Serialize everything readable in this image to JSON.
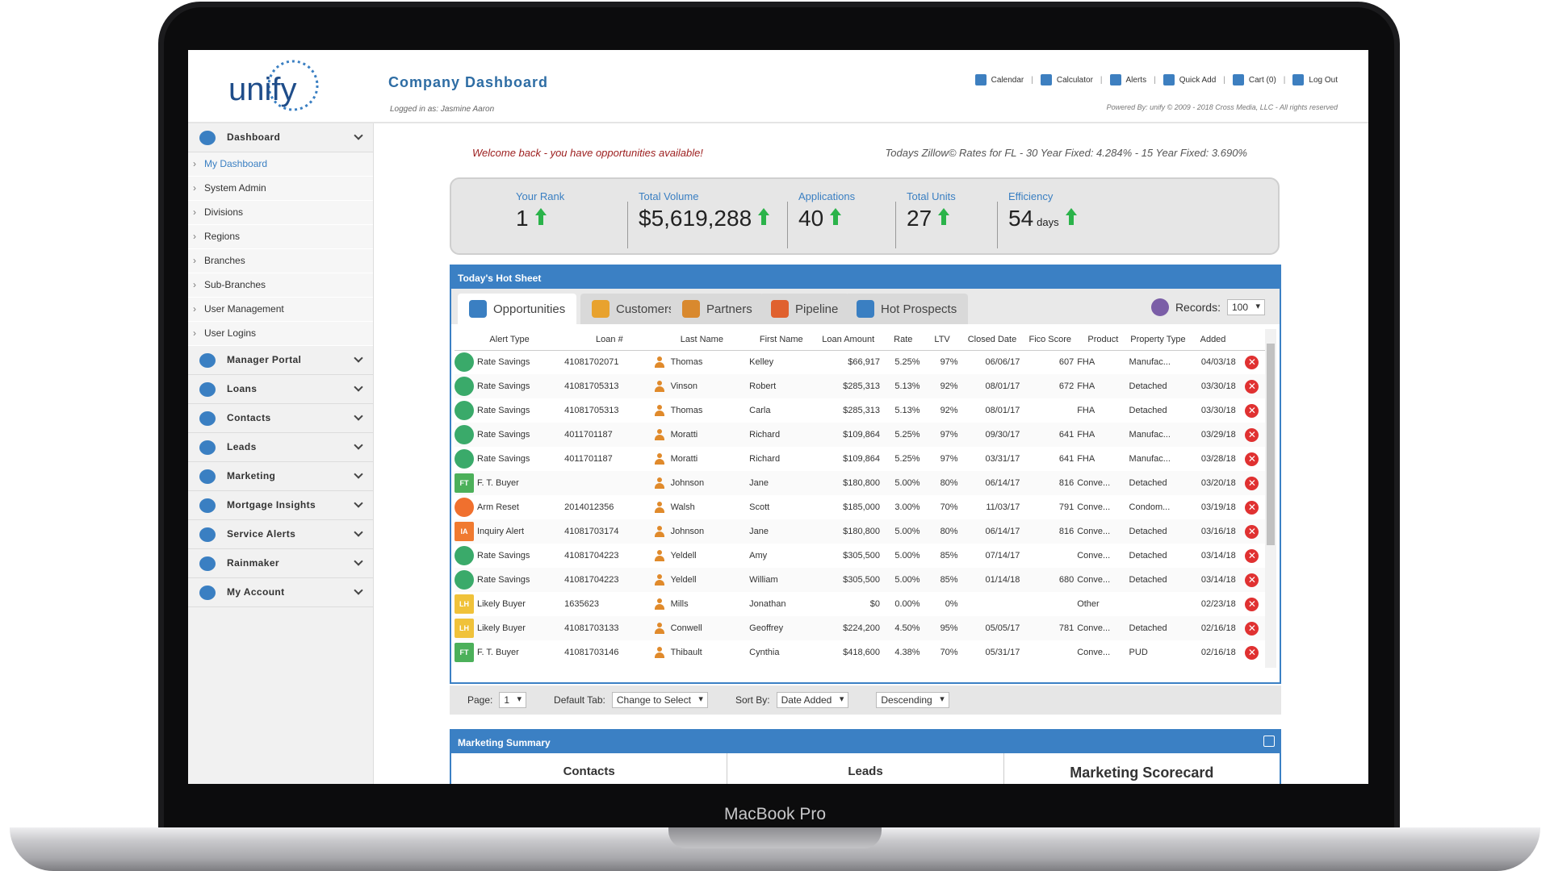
{
  "device": {
    "brand": "MacBook Pro"
  },
  "header": {
    "logo": "unify",
    "title": "Company Dashboard",
    "logged_in": "Logged in as: Jasmine Aaron",
    "nav": [
      {
        "label": "Calendar",
        "icon": "calendar-icon"
      },
      {
        "label": "Calculator",
        "icon": "calculator-icon"
      },
      {
        "label": "Alerts",
        "icon": "alert-icon"
      },
      {
        "label": "Quick Add",
        "icon": "plus-icon"
      },
      {
        "label": "Cart (0)",
        "icon": "cart-icon"
      },
      {
        "label": "Log Out",
        "icon": "user-icon"
      }
    ],
    "powered": "Powered By: unify  © 2009 - 2018 Cross Media, LLC - All rights reserved"
  },
  "sidebar": {
    "dashboard": "Dashboard",
    "sub": [
      "My Dashboard",
      "System Admin",
      "Divisions",
      "Regions",
      "Branches",
      "Sub-Branches",
      "User Management",
      "User Logins"
    ],
    "sections": [
      "Manager Portal",
      "Loans",
      "Contacts",
      "Leads",
      "Marketing",
      "Mortgage Insights",
      "Service Alerts",
      "Rainmaker",
      "My Account"
    ]
  },
  "main": {
    "welcome": "Welcome back - you have opportunities available!",
    "rates": "Todays Zillow© Rates for FL - 30 Year Fixed: 4.284% - 15 Year Fixed: 3.690%",
    "stats": [
      {
        "label": "Your Rank",
        "value": "1",
        "unit": ""
      },
      {
        "label": "Total Volume",
        "value": "$5,619,288",
        "unit": ""
      },
      {
        "label": "Applications",
        "value": "40",
        "unit": ""
      },
      {
        "label": "Total Units",
        "value": "27",
        "unit": ""
      },
      {
        "label": "Efficiency",
        "value": "54",
        "unit": "days"
      }
    ]
  },
  "hotsheet": {
    "title": "Today's Hot Sheet",
    "tabs": [
      "Opportunities",
      "Customers",
      "Partners",
      "Pipeline",
      "Hot Prospects"
    ],
    "records_label": "Records:",
    "records_value": "100",
    "columns": [
      "Alert Type",
      "Loan #",
      "Last Name",
      "First Name",
      "Loan Amount",
      "Rate",
      "LTV",
      "Closed Date",
      "Fico Score",
      "Product",
      "Property Type",
      "Added"
    ],
    "rows": [
      [
        "Rate Savings",
        "41081702071",
        "Thomas",
        "Kelley",
        "$66,917",
        "5.25%",
        "97%",
        "06/06/17",
        "607",
        "FHA",
        "Manufac...",
        "04/03/18"
      ],
      [
        "Rate Savings",
        "41081705313",
        "Vinson",
        "Robert",
        "$285,313",
        "5.13%",
        "92%",
        "08/01/17",
        "672",
        "FHA",
        "Detached",
        "03/30/18"
      ],
      [
        "Rate Savings",
        "41081705313",
        "Thomas",
        "Carla",
        "$285,313",
        "5.13%",
        "92%",
        "08/01/17",
        "",
        "FHA",
        "Detached",
        "03/30/18"
      ],
      [
        "Rate Savings",
        "4011701187",
        "Moratti",
        "Richard",
        "$109,864",
        "5.25%",
        "97%",
        "09/30/17",
        "641",
        "FHA",
        "Manufac...",
        "03/29/18"
      ],
      [
        "Rate Savings",
        "4011701187",
        "Moratti",
        "Richard",
        "$109,864",
        "5.25%",
        "97%",
        "03/31/17",
        "641",
        "FHA",
        "Manufac...",
        "03/28/18"
      ],
      [
        "F. T. Buyer",
        "",
        "Johnson",
        "Jane",
        "$180,800",
        "5.00%",
        "80%",
        "06/14/17",
        "816",
        "Conve...",
        "Detached",
        "03/20/18"
      ],
      [
        "Arm Reset",
        "2014012356",
        "Walsh",
        "Scott",
        "$185,000",
        "3.00%",
        "70%",
        "11/03/17",
        "791",
        "Conve...",
        "Condom...",
        "03/19/18"
      ],
      [
        "Inquiry Alert",
        "41081703174",
        "Johnson",
        "Jane",
        "$180,800",
        "5.00%",
        "80%",
        "06/14/17",
        "816",
        "Conve...",
        "Detached",
        "03/16/18"
      ],
      [
        "Rate Savings",
        "41081704223",
        "Yeldell",
        "Amy",
        "$305,500",
        "5.00%",
        "85%",
        "07/14/17",
        "",
        "Conve...",
        "Detached",
        "03/14/18"
      ],
      [
        "Rate Savings",
        "41081704223",
        "Yeldell",
        "William",
        "$305,500",
        "5.00%",
        "85%",
        "01/14/18",
        "680",
        "Conve...",
        "Detached",
        "03/14/18"
      ],
      [
        "Likely Buyer",
        "1635623",
        "Mills",
        "Jonathan",
        "$0",
        "0.00%",
        "0%",
        "",
        "",
        "Other",
        "",
        "02/23/18"
      ],
      [
        "Likely Buyer",
        "41081703133",
        "Conwell",
        "Geoffrey",
        "$224,200",
        "4.50%",
        "95%",
        "05/05/17",
        "781",
        "Conve...",
        "Detached",
        "02/16/18"
      ],
      [
        "F. T. Buyer",
        "41081703146",
        "Thibault",
        "Cynthia",
        "$418,600",
        "4.38%",
        "70%",
        "05/31/17",
        "",
        "Conve...",
        "PUD",
        "02/16/18"
      ]
    ],
    "icon_codes": [
      "",
      "",
      "",
      "",
      "",
      "FT",
      "",
      "IA",
      "",
      "",
      "LH",
      "LH",
      "FT"
    ],
    "footer": {
      "page_label": "Page:",
      "page_value": "1",
      "default_label": "Default Tab:",
      "default_value": "Change to Select",
      "sort_label": "Sort By:",
      "sort_value": "Date Added",
      "order_value": "Descending"
    }
  },
  "marketing": {
    "title": "Marketing Summary",
    "cols": [
      "Contacts",
      "Leads",
      "Marketing Scorecard"
    ]
  },
  "colors": {
    "accent": "#3b80c4",
    "rate_savings": "#3aaa6a",
    "ft_buyer": "#4cb05a",
    "arm_reset": "#f0702e",
    "inquiry": "#f07a30",
    "likely_buyer": "#f0c23a",
    "delete": "#e03131",
    "up": "#2bb34a"
  }
}
